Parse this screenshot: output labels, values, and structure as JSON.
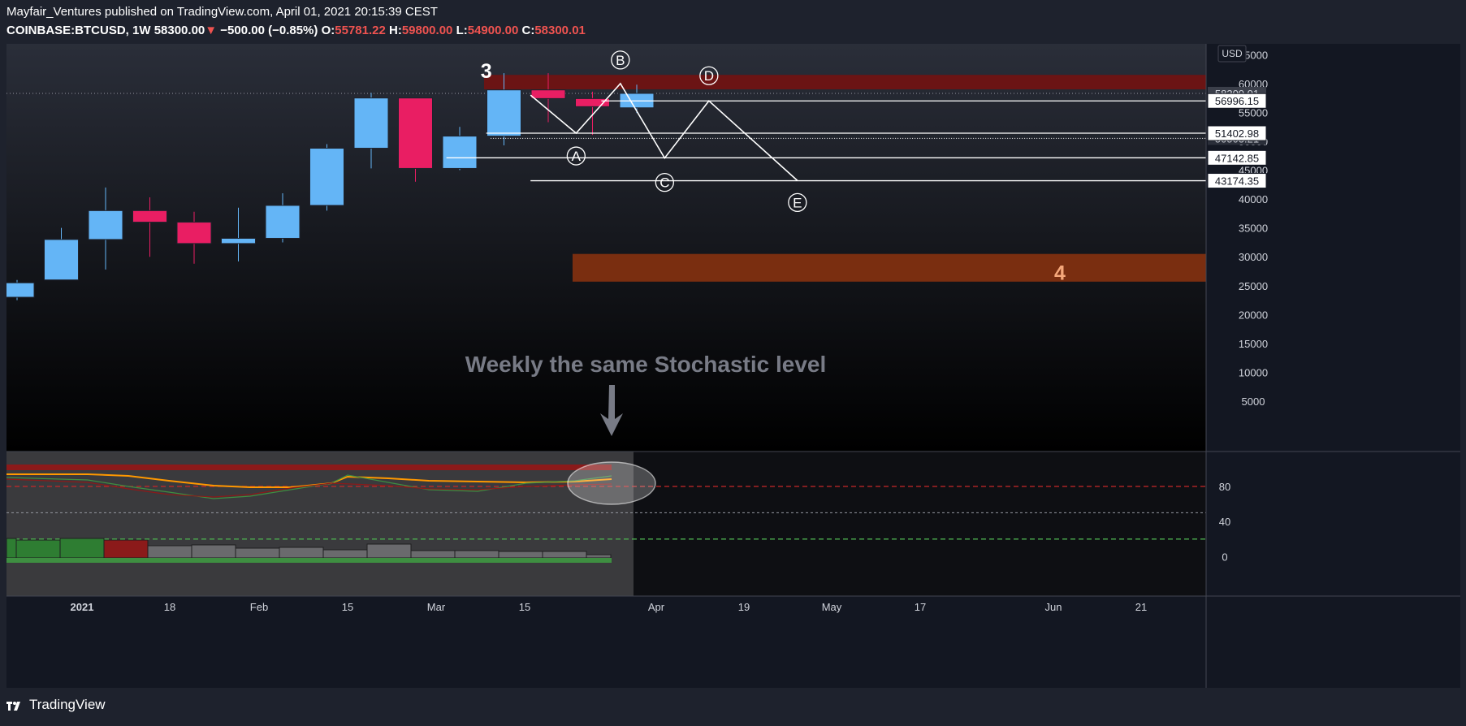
{
  "header": {
    "line1": "Mayfair_Ventures published on TradingView.com, April 01, 2021 20:15:39 CEST",
    "symbol": "COINBASE:BTCUSD, 1W",
    "last": "58300.00",
    "change_arrow": "▼",
    "change": "−500.00 (−0.85%)",
    "o_label": "O:",
    "o": "55781.22",
    "h_label": "H:",
    "h": "59800.00",
    "l_label": "L:",
    "l": "54900.00",
    "c_label": "C:",
    "c": "58300.01"
  },
  "footer": {
    "brand": "TradingView"
  },
  "colors": {
    "up": "#64b5f6",
    "down": "#e91e63",
    "resistance": "#6b1414",
    "support": "#7a2e10",
    "text": "#ffffff"
  },
  "chart_data": {
    "type": "candlestick",
    "currency": "USD",
    "y_ticks": [
      "65000",
      "60000",
      "55000",
      "50000",
      "45000",
      "40000",
      "35000",
      "30000",
      "25000",
      "20000",
      "15000",
      "10000",
      "5000"
    ],
    "ylim": [
      0,
      70000
    ],
    "x_ticks": [
      "2021",
      "18",
      "Feb",
      "15",
      "Mar",
      "15",
      "Apr",
      "19",
      "May",
      "17",
      "Jun",
      "21"
    ],
    "candles": [
      {
        "o": 23000,
        "h": 26000,
        "l": 22500,
        "c": 25500
      },
      {
        "o": 26000,
        "h": 35000,
        "l": 26000,
        "c": 33000
      },
      {
        "o": 33000,
        "h": 42000,
        "l": 27800,
        "c": 38000
      },
      {
        "o": 38000,
        "h": 40300,
        "l": 30000,
        "c": 36000
      },
      {
        "o": 36000,
        "h": 37800,
        "l": 28800,
        "c": 32300
      },
      {
        "o": 32300,
        "h": 38500,
        "l": 29200,
        "c": 33200
      },
      {
        "o": 33200,
        "h": 41000,
        "l": 32500,
        "c": 38900
      },
      {
        "o": 38900,
        "h": 49500,
        "l": 38000,
        "c": 48800
      },
      {
        "o": 48800,
        "h": 58400,
        "l": 45300,
        "c": 57500
      },
      {
        "o": 57500,
        "h": 57500,
        "l": 43000,
        "c": 45300
      },
      {
        "o": 45300,
        "h": 52500,
        "l": 45000,
        "c": 50900
      },
      {
        "o": 50900,
        "h": 61800,
        "l": 49300,
        "c": 58900
      },
      {
        "o": 58900,
        "h": 61800,
        "l": 53300,
        "c": 57400
      },
      {
        "o": 57400,
        "h": 58600,
        "l": 51100,
        "c": 56000
      },
      {
        "o": 55800,
        "h": 59800,
        "l": 54900,
        "c": 58300
      }
    ],
    "price_labels": [
      {
        "value": 56996.15,
        "text": "56996.15"
      },
      {
        "value": 51402.98,
        "text": "51402.98"
      },
      {
        "value": 47142.85,
        "text": "47142.85"
      },
      {
        "value": 43174.35,
        "text": "43174.35"
      }
    ],
    "last_price_label": "58300.01",
    "hidden_label": "50503.21",
    "wave_points": [
      {
        "label": "A",
        "value": 51400
      },
      {
        "label": "B",
        "value": 60000
      },
      {
        "label": "C",
        "value": 47100
      },
      {
        "label": "D",
        "value": 57000
      },
      {
        "label": "E",
        "value": 43200
      }
    ],
    "zones": [
      {
        "name": "resistance",
        "from": 59000,
        "to": 61500
      },
      {
        "name": "support",
        "from": 25700,
        "to": 30500
      }
    ],
    "annotations": {
      "wave3": "3",
      "wave4": "4",
      "note": "Weekly the same Stochastic level"
    },
    "stochastic": {
      "y_ticks": [
        "80",
        "40",
        "0"
      ],
      "levels": [
        80,
        50,
        20
      ]
    }
  }
}
